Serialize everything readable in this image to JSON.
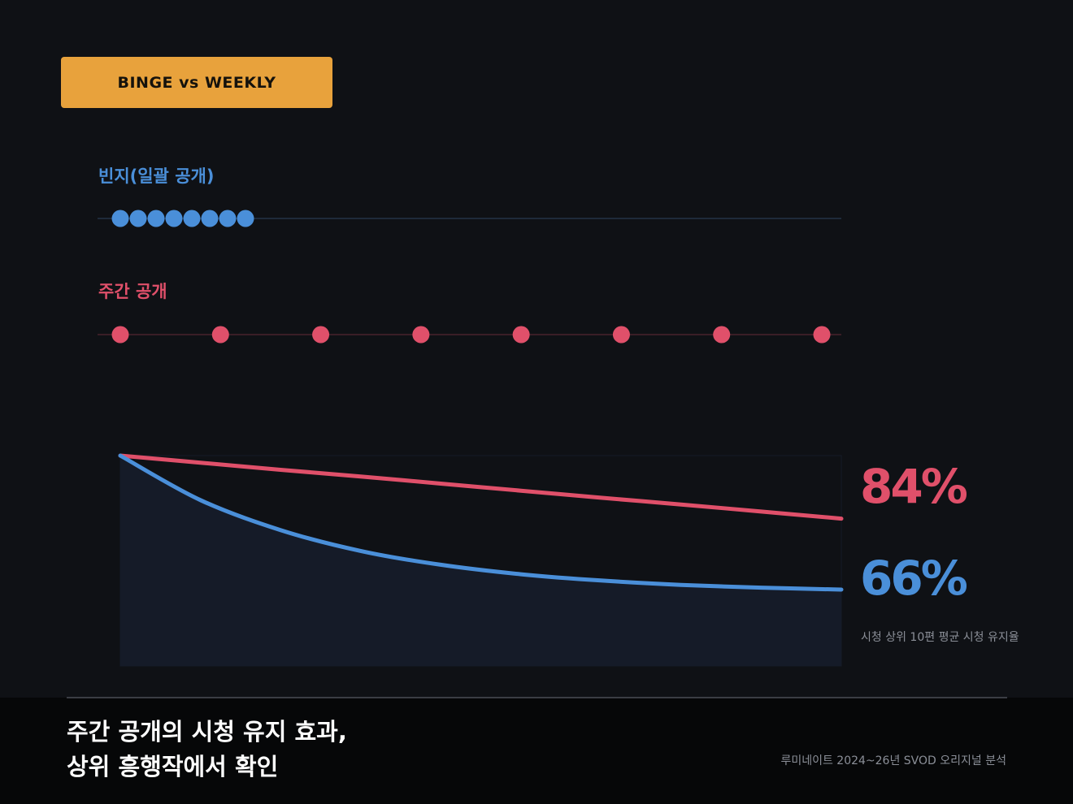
{
  "badge": {
    "text": "BINGE vs WEEKLY",
    "color": "#e8a23c"
  },
  "colors": {
    "binge": "#4a8fd9",
    "weekly": "#e0506a",
    "background": "#0f1115"
  },
  "tracks": {
    "binge": {
      "label": "빈지(일괄 공개)",
      "episodes": 8
    },
    "weekly": {
      "label": "주간 공개",
      "episodes": 8
    }
  },
  "chart_data": {
    "type": "line",
    "ylim": [
      0,
      100
    ],
    "x": [
      1,
      2,
      3,
      4,
      5,
      6,
      7,
      8,
      9,
      10
    ],
    "series": [
      {
        "key": "weekly",
        "values": [
          100,
          98.2,
          96.4,
          94.7,
          92.9,
          91.1,
          89.3,
          87.6,
          85.8,
          84
        ]
      },
      {
        "key": "binge",
        "values": [
          100,
          88.7,
          81.1,
          75.8,
          72.3,
          69.9,
          68.3,
          67.2,
          66.5,
          66
        ]
      }
    ],
    "end_labels": {
      "weekly": "84%",
      "binge": "66%"
    },
    "note": "시청 상위 10편 평균 시청 유지율"
  },
  "footer": {
    "headline_line1": "주간 공개의 시청 유지 효과,",
    "headline_line2": "상위 흥행작에서 확인",
    "source": "루미네이트 2024~26년 SVOD 오리지널 분석"
  }
}
